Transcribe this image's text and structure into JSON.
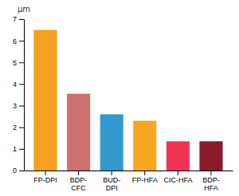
{
  "chart_data": {
    "type": "bar",
    "categories": [
      "FP-DPI",
      "BDP-\nCFC",
      "BUD-\nDPI",
      "FP-HFA",
      "CIC-HFA",
      "BDP-\nHFA"
    ],
    "values": [
      6.5,
      3.55,
      2.6,
      2.3,
      1.35,
      1.35
    ],
    "colors": [
      "#F5A020",
      "#CC7070",
      "#3399CC",
      "#F5A820",
      "#EE3355",
      "#8B1A2A"
    ],
    "ylabel": "μm",
    "ylim": [
      0,
      7
    ],
    "yticks": [
      0,
      1,
      2,
      3,
      4,
      5,
      6,
      7
    ],
    "grid": false
  }
}
